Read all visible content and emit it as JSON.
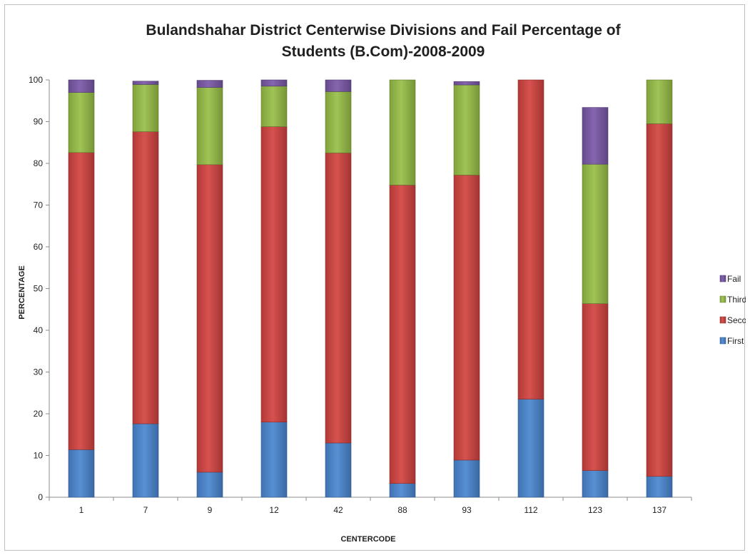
{
  "chart_data": {
    "type": "bar",
    "stacked": true,
    "title_lines": [
      "Bulandshahar District Centerwise Divisions and Fail Percentage of",
      "Students (B.Com)-2008-2009"
    ],
    "xlabel": "CENTERCODE",
    "ylabel": "PERCENTAGE",
    "ylim": [
      0,
      100
    ],
    "yticks": [
      0,
      10,
      20,
      30,
      40,
      50,
      60,
      70,
      80,
      90,
      100
    ],
    "categories": [
      "1",
      "7",
      "9",
      "12",
      "42",
      "88",
      "93",
      "112",
      "123",
      "137"
    ],
    "series": [
      {
        "name": "First",
        "color": "#4a86d0",
        "values": [
          11.4,
          17.6,
          6.0,
          18.0,
          13.0,
          3.3,
          8.9,
          23.5,
          6.4,
          5.0
        ]
      },
      {
        "name": "Second",
        "color": "#d24340",
        "values": [
          71.2,
          70.0,
          73.7,
          70.8,
          69.5,
          71.5,
          68.3,
          76.5,
          40.0,
          84.5
        ]
      },
      {
        "name": "Third",
        "color": "#98bf47",
        "values": [
          14.4,
          11.3,
          18.5,
          9.7,
          14.7,
          25.2,
          21.6,
          0,
          33.4,
          10.5
        ]
      },
      {
        "name": "Fail",
        "color": "#7a58a8",
        "values": [
          3.0,
          0.8,
          1.7,
          1.5,
          2.8,
          0,
          0.8,
          0,
          13.6,
          0
        ]
      }
    ],
    "legend": {
      "position": "right",
      "order": [
        "Fail",
        "Third",
        "Second",
        "First"
      ]
    },
    "grid": false
  }
}
